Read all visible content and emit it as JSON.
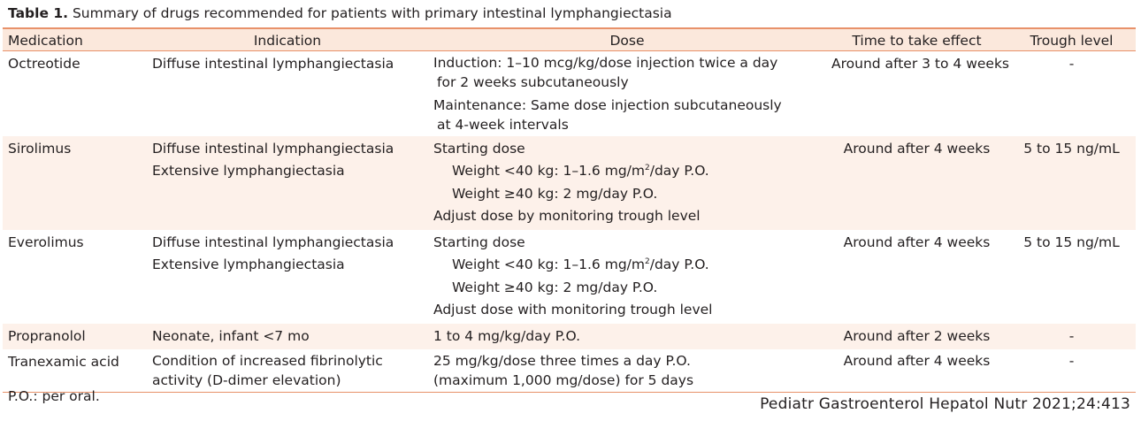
{
  "caption": {
    "label": "Table 1.",
    "text": " Summary of drugs recommended for patients with primary intestinal lymphangiectasia"
  },
  "headers": {
    "medication": "Medication",
    "indication": "Indication",
    "dose": "Dose",
    "time": "Time to take effect",
    "trough": "Trough level"
  },
  "rows": [
    {
      "medication": "Octreotide",
      "indication": [
        "Diffuse intestinal lymphangiectasia"
      ],
      "dose_blocks": [
        [
          "Induction: 1–10 mcg/kg/dose injection twice a day",
          " for 2 weeks subcutaneously"
        ],
        [
          "Maintenance: Same dose injection subcutaneously",
          " at 4-week intervals"
        ]
      ],
      "time": "Around after 3 to 4 weeks",
      "trough": "-"
    },
    {
      "medication": "Sirolimus",
      "indication": [
        "Diffuse intestinal lymphangiectasia",
        "Extensive lymphangiectasia"
      ],
      "dose": {
        "start": "Starting dose",
        "w1_pre": "Weight <40 kg: 1–1.6 mg/m",
        "w1_sup": "2",
        "w1_post": "/day P.O.",
        "w2": "Weight ≥40 kg: 2 mg/day P.O.",
        "adjust": "Adjust dose by monitoring trough level"
      },
      "time": "Around after 4 weeks",
      "trough": "5 to 15 ng/mL"
    },
    {
      "medication": "Everolimus",
      "indication": [
        "Diffuse intestinal lymphangiectasia",
        "Extensive lymphangiectasia"
      ],
      "dose": {
        "start": "Starting dose",
        "w1_pre": "Weight <40 kg: 1–1.6 mg/m",
        "w1_sup": "2",
        "w1_post": "/day P.O.",
        "w2": "Weight ≥40 kg: 2 mg/day P.O.",
        "adjust": "Adjust dose with monitoring trough level"
      },
      "time": "Around after 4 weeks",
      "trough": "5 to 15 ng/mL"
    },
    {
      "medication": "Propranolol",
      "indication": [
        "Neonate, infant <7 mo"
      ],
      "dose_lines": [
        "1 to 4 mg/kg/day P.O."
      ],
      "time": "Around after 2 weeks",
      "trough": "-"
    },
    {
      "medication": "Tranexamic acid",
      "indication": [
        "Condition of increased fibrinolytic",
        "activity (D-dimer elevation)"
      ],
      "dose_lines": [
        "25 mg/kg/dose three times a day P.O.",
        "(maximum 1,000 mg/dose) for 5 days"
      ],
      "time": "Around after 4 weeks",
      "trough": "-"
    }
  ],
  "footnote": "P.O.: per oral.",
  "citation": "Pediatr Gastroenterol Hepatol Nutr 2021;24:413",
  "colors": {
    "rule": "#e8926a",
    "header_fill": "#fbe8dc",
    "row_shade": "#fdf1ea",
    "text": "#231f20"
  }
}
